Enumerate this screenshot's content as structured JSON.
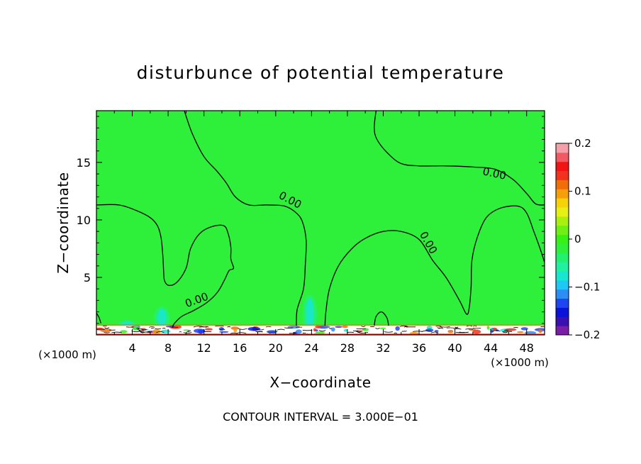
{
  "chart_data": {
    "type": "heatmap",
    "title": "disturbunce of potential temperature",
    "xlabel": "X−coordinate",
    "ylabel": "Z−coordinate",
    "x_unit": "(×1000 m)",
    "x_unit_right": "(×1000 m)",
    "footer": "CONTOUR INTERVAL = 3.000E−01",
    "xlim": [
      0,
      50
    ],
    "ylim": [
      0,
      19.5
    ],
    "x_ticks": [
      4,
      8,
      12,
      16,
      20,
      24,
      28,
      32,
      36,
      40,
      44,
      48
    ],
    "y_ticks": [
      5,
      10,
      15
    ],
    "colorbar": {
      "range": [
        -0.2,
        0.2
      ],
      "tick_labels": [
        "0.2",
        "0.1",
        "0",
        "−0.1",
        "−0.2"
      ],
      "tick_values": [
        0.2,
        0.1,
        0,
        -0.1,
        -0.2
      ],
      "colors": [
        "#7a1ea8",
        "#3a10b0",
        "#0a14d8",
        "#1e46f0",
        "#2e8cf5",
        "#1ec8f5",
        "#18e6d0",
        "#20f0a0",
        "#24f070",
        "#2ef03a",
        "#36f018",
        "#6ef014",
        "#a8f010",
        "#e6f014",
        "#f5d20a",
        "#f5a00a",
        "#f06e0a",
        "#f0321e",
        "#f01414",
        "#f05a64",
        "#f5a0a8"
      ]
    },
    "field_value_dominant": 0.0,
    "contour_label": "0.00",
    "contour_labels": [
      {
        "text": "0.00",
        "x": 21.6,
        "y": 11.7
      },
      {
        "text": "0.00",
        "x": 11.2,
        "y": 3.0
      },
      {
        "text": "0.00",
        "x": 44.4,
        "y": 14.0
      },
      {
        "text": "0.00",
        "x": 37.0,
        "y": 8.0
      }
    ],
    "contours": [
      [
        [
          0,
          11.3
        ],
        [
          2.5,
          11.3
        ],
        [
          4.5,
          10.8
        ],
        [
          6,
          10.2
        ],
        [
          6.8,
          9.5
        ],
        [
          7.2,
          8.5
        ],
        [
          7.4,
          7.0
        ],
        [
          7.5,
          5.5
        ],
        [
          7.6,
          4.7
        ],
        [
          8.1,
          4.3
        ],
        [
          9.0,
          4.6
        ],
        [
          10.0,
          5.8
        ],
        [
          10.5,
          7.5
        ],
        [
          11.5,
          8.8
        ],
        [
          12.8,
          9.4
        ],
        [
          14.2,
          9.5
        ],
        [
          14.7,
          8.8
        ],
        [
          15.0,
          7.6
        ],
        [
          15.0,
          6.6
        ],
        [
          15.3,
          5.8
        ],
        [
          14.8,
          5.6
        ],
        [
          14.3,
          4.8
        ],
        [
          13.5,
          3.7
        ],
        [
          12.3,
          2.8
        ],
        [
          10.8,
          2.1
        ],
        [
          9.5,
          1.6
        ],
        [
          8.7,
          1.0
        ],
        [
          8.5,
          0.7
        ]
      ],
      [
        [
          9.8,
          19.5
        ],
        [
          10.7,
          17.5
        ],
        [
          12.0,
          15.5
        ],
        [
          13.5,
          14.2
        ],
        [
          14.5,
          13.2
        ],
        [
          15.5,
          12.0
        ],
        [
          17.0,
          11.3
        ],
        [
          19.0,
          11.3
        ],
        [
          21.0,
          11.2
        ],
        [
          22.3,
          10.6
        ],
        [
          23.0,
          9.8
        ],
        [
          23.4,
          8.2
        ],
        [
          23.3,
          6.0
        ],
        [
          23.1,
          4.0
        ],
        [
          22.4,
          2.2
        ],
        [
          22.3,
          0.8
        ]
      ],
      [
        [
          25.5,
          0.8
        ],
        [
          25.6,
          2.0
        ],
        [
          26.0,
          4.0
        ],
        [
          27.0,
          6.0
        ],
        [
          28.5,
          7.5
        ],
        [
          30.0,
          8.4
        ],
        [
          32.0,
          9.0
        ],
        [
          34.0,
          9.0
        ],
        [
          36.0,
          8.3
        ],
        [
          37.5,
          6.5
        ],
        [
          39.0,
          5.0
        ],
        [
          40.5,
          3.0
        ],
        [
          41.3,
          1.8
        ],
        [
          41.6,
          2.4
        ],
        [
          41.8,
          4.2
        ],
        [
          41.9,
          6.5
        ],
        [
          42.5,
          8.5
        ],
        [
          43.5,
          10.2
        ],
        [
          45.0,
          11.0
        ],
        [
          47.0,
          11.2
        ],
        [
          48.0,
          10.6
        ],
        [
          48.8,
          9.0
        ],
        [
          49.5,
          7.5
        ],
        [
          50,
          6.3
        ]
      ],
      [
        [
          31.2,
          19.5
        ],
        [
          31.0,
          18.0
        ],
        [
          31.3,
          17.0
        ],
        [
          32.5,
          15.8
        ],
        [
          34.0,
          14.9
        ],
        [
          36.0,
          14.7
        ],
        [
          39.0,
          14.7
        ],
        [
          42.0,
          14.6
        ],
        [
          44.5,
          14.4
        ],
        [
          46.5,
          13.5
        ],
        [
          48.0,
          12.3
        ],
        [
          49.0,
          11.4
        ],
        [
          50,
          11.3
        ]
      ],
      [
        [
          0,
          1.9
        ],
        [
          0.3,
          1.5
        ],
        [
          0.5,
          1.0
        ]
      ],
      [
        [
          31.0,
          0.8
        ],
        [
          31.2,
          1.6
        ],
        [
          31.8,
          2.0
        ],
        [
          32.4,
          1.5
        ],
        [
          32.6,
          0.8
        ]
      ]
    ],
    "cyan_spots": [
      {
        "x": 23.8,
        "y": 1.8,
        "rx": 0.45,
        "ry": 1.4
      },
      {
        "x": 7.3,
        "y": 1.5,
        "rx": 0.5,
        "ry": 0.8
      },
      {
        "x": 3.4,
        "y": 0.9,
        "rx": 0.6,
        "ry": 0.3
      }
    ],
    "grid": false
  }
}
